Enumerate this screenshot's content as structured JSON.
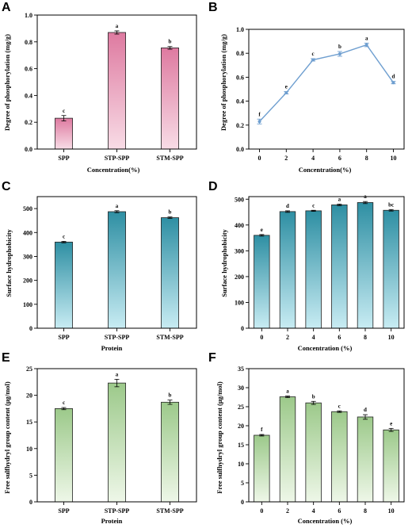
{
  "chart_data": [
    {
      "panel": "A",
      "type": "bar",
      "categories": [
        "SPP",
        "STP-SPP",
        "STM-SPP"
      ],
      "values": [
        0.23,
        0.87,
        0.755
      ],
      "errors": [
        0.02,
        0.012,
        0.01
      ],
      "significance": [
        "c",
        "a",
        "b"
      ],
      "xlabel": "Concentration(%)",
      "ylabel": "Degree of phosphorylation (mg/g)",
      "ylim": [
        0,
        1.0
      ],
      "yticks": [
        "0.0",
        "0.2",
        "0.4",
        "0.6",
        "0.8",
        "1.0"
      ],
      "colors": {
        "top": "#de7aa0",
        "bottom": "#f8dce6"
      }
    },
    {
      "panel": "B",
      "type": "line",
      "x": [
        0,
        2,
        4,
        6,
        8,
        10
      ],
      "xticks": [
        "0",
        "2",
        "4",
        "6",
        "8",
        "10"
      ],
      "values": [
        0.23,
        0.47,
        0.745,
        0.795,
        0.87,
        0.555
      ],
      "errors": [
        0.02,
        0.01,
        0.01,
        0.02,
        0.015,
        0.01
      ],
      "significance": [
        "f",
        "e",
        "c",
        "b",
        "a",
        "d"
      ],
      "xlabel": "Concentration(%)",
      "ylabel": "Degree of phosphorylation (mg/g)",
      "xlim": [
        -0.8,
        10.8
      ],
      "ylim": [
        0,
        1.0
      ],
      "yticks": [
        "0.0",
        "0.2",
        "0.4",
        "0.6",
        "0.8",
        "1.0"
      ],
      "colors": {
        "line": "#6f9fd0"
      }
    },
    {
      "panel": "C",
      "type": "bar",
      "categories": [
        "SPP",
        "STP-SPP",
        "STM-SPP"
      ],
      "values": [
        360,
        487,
        462
      ],
      "errors": [
        3,
        4,
        3
      ],
      "significance": [
        "c",
        "a",
        "b"
      ],
      "xlabel": "Protein",
      "ylabel": "Surface hydrophobicity",
      "ylim": [
        0,
        550
      ],
      "yticks": [
        "0",
        "100",
        "200",
        "300",
        "400",
        "500"
      ],
      "colors": {
        "top": "#2e8fa3",
        "bottom": "#c8ecf3"
      }
    },
    {
      "panel": "D",
      "type": "bar",
      "categories": [
        "0",
        "2",
        "4",
        "6",
        "8",
        "10"
      ],
      "values": [
        360,
        452,
        455,
        478,
        487,
        457
      ],
      "errors": [
        3,
        3,
        2,
        3,
        4,
        3
      ],
      "significance": [
        "e",
        "d",
        "c",
        "a",
        "a",
        "bc"
      ],
      "xlabel": "Concentration (%)",
      "ylabel": "Surface hydrophobicity",
      "ylim": [
        0,
        510
      ],
      "yticks": [
        "0",
        "100",
        "200",
        "300",
        "400",
        "500"
      ],
      "colors": {
        "top": "#2e8fa3",
        "bottom": "#c8ecf3"
      }
    },
    {
      "panel": "E",
      "type": "bar",
      "categories": [
        "SPP",
        "STP-SPP",
        "STM-SPP"
      ],
      "values": [
        17.5,
        22.3,
        18.7
      ],
      "errors": [
        0.2,
        0.7,
        0.4
      ],
      "significance": [
        "c",
        "a",
        "b"
      ],
      "xlabel": "Protein",
      "ylabel": "Free sulfhydryl group content (μg/mol)",
      "ylim": [
        0,
        25
      ],
      "yticks": [
        "0",
        "5",
        "10",
        "15",
        "20",
        "25"
      ],
      "colors": {
        "top": "#9cc98a",
        "bottom": "#eef7e8"
      }
    },
    {
      "panel": "F",
      "type": "bar",
      "categories": [
        "0",
        "2",
        "4",
        "6",
        "8",
        "10"
      ],
      "values": [
        17.5,
        27.6,
        26.0,
        23.7,
        22.3,
        18.9
      ],
      "errors": [
        0.2,
        0.2,
        0.4,
        0.2,
        0.6,
        0.4
      ],
      "significance": [
        "f",
        "a",
        "b",
        "c",
        "d",
        "e"
      ],
      "xlabel": "Concentration (%)",
      "ylabel": "Free sulfhydryl group content (μg/mol)",
      "ylim": [
        0,
        35
      ],
      "yticks": [
        "0",
        "5",
        "10",
        "15",
        "20",
        "25",
        "30",
        "35"
      ],
      "colors": {
        "top": "#9cc98a",
        "bottom": "#eef7e8"
      }
    }
  ]
}
